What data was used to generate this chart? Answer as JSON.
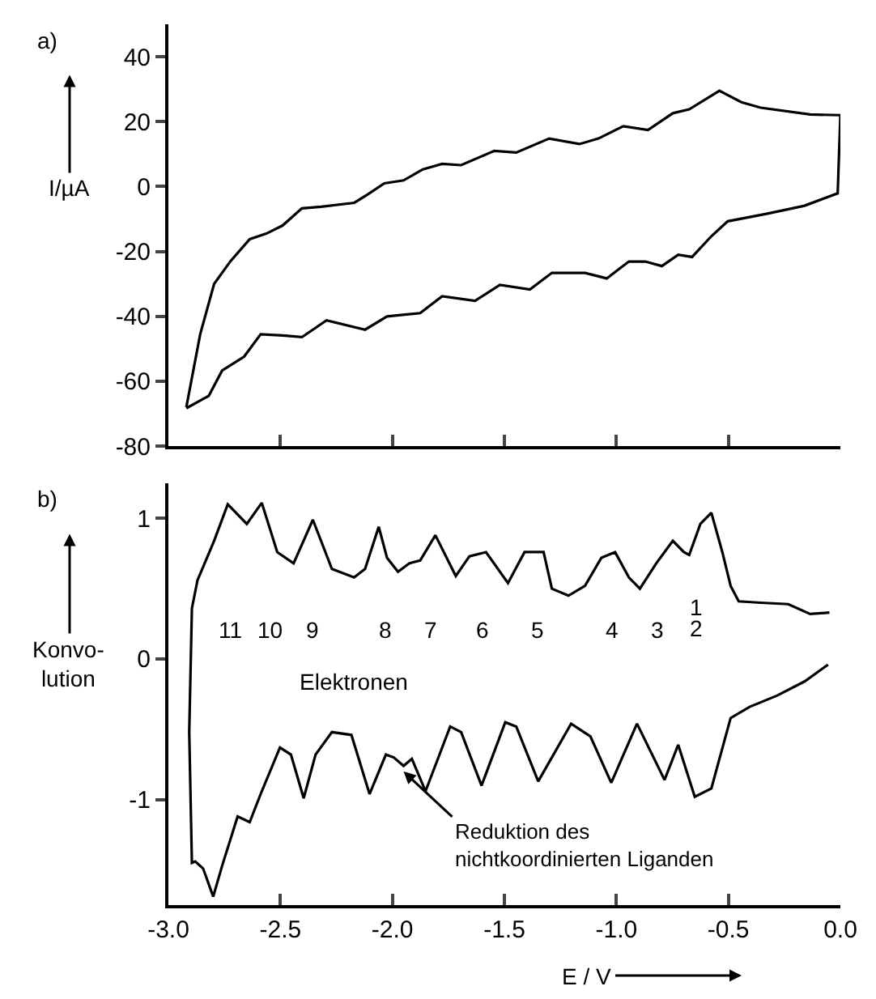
{
  "chart_data": [
    {
      "type": "line",
      "ylabel": "I/µA",
      "xlim": [
        -3,
        0
      ],
      "ylim": [
        -80,
        50
      ],
      "xticks": [
        -3,
        -2.5,
        -2,
        -1.5,
        -1,
        -0.5,
        0
      ],
      "yticks": [
        -80,
        -60,
        -40,
        -20,
        0,
        20,
        40
      ],
      "tick_labels": "y",
      "marker": "none",
      "line_style": "solid",
      "annotations": [
        "a)"
      ],
      "series": [
        {
          "color": "#000000",
          "x": [
            -2.92,
            -2.858,
            -2.796,
            -2.723,
            -2.637,
            -2.563,
            -2.49,
            -2.404,
            -2.318,
            -2.17,
            -2.11,
            -2.036,
            -1.95,
            -1.864,
            -1.778,
            -1.693,
            -1.545,
            -1.447,
            -1.3,
            -1.165,
            -1.08,
            -0.969,
            -0.859,
            -0.748,
            -0.675,
            -0.54,
            -0.442,
            -0.356,
            -0.135,
            0.0,
            -0.012,
            -0.16,
            -0.33,
            -0.503,
            -0.576,
            -0.662,
            -0.724,
            -0.797,
            -0.871,
            -0.944,
            -1.043,
            -1.14,
            -1.288,
            -1.386,
            -1.52,
            -1.631,
            -1.778,
            -1.876,
            -2.024,
            -2.122,
            -2.294,
            -2.404,
            -2.49,
            -2.588,
            -2.662,
            -2.76,
            -2.82,
            -2.92
          ],
          "values": [
            -68,
            -45.5,
            -30,
            -23,
            -16.2,
            -14.5,
            -12,
            -6.7,
            -6.2,
            -5,
            -2.4,
            1,
            1.9,
            5.3,
            7,
            6.6,
            11,
            10.5,
            14.8,
            13.1,
            14.8,
            18.6,
            17.4,
            22.6,
            23.8,
            29.5,
            26,
            24.3,
            22.2,
            22,
            -2.1,
            -5.9,
            -8.4,
            -10.7,
            -15.3,
            -21.7,
            -21,
            -24.5,
            -23.1,
            -23.1,
            -28.3,
            -26.6,
            -26.6,
            -31.7,
            -30.3,
            -35.2,
            -33.8,
            -39,
            -40,
            -44.1,
            -41.2,
            -46.4,
            -45.9,
            -45.5,
            -52.4,
            -56.7,
            -64.5,
            -68.3
          ]
        }
      ]
    },
    {
      "type": "line",
      "xlabel": "E / V",
      "ylabel": "Konvo-\nlution",
      "xlim": [
        -3,
        0
      ],
      "ylim": [
        -1.75,
        1.25
      ],
      "xticks": [
        {
          "value": -3,
          "label": "-3.0"
        },
        {
          "value": -2.5,
          "label": "-2.5"
        },
        {
          "value": -2,
          "label": "-2.0"
        },
        {
          "value": -1.5,
          "label": "-1.5"
        },
        {
          "value": -1,
          "label": "-1.0"
        },
        {
          "value": -0.5,
          "label": "-0.5"
        },
        {
          "value": 0,
          "label": "0.0"
        }
      ],
      "yticks": [
        -1,
        0,
        1
      ],
      "marker": "none",
      "line_style": "solid",
      "annotations": [
        "b)",
        "11",
        "10",
        "9",
        "8",
        "7",
        "6",
        "5",
        "4",
        "3",
        "1",
        "2",
        "Elektronen",
        {
          "text": "Reduktion des\nnichtkoordinierten Liganden",
          "x": -1.95,
          "y": -0.8
        }
      ],
      "series": [
        {
          "color": "#000000",
          "x": [
            -0.049,
            -0.135,
            -0.233,
            -0.356,
            -0.454,
            -0.49,
            -0.527,
            -0.576,
            -0.625,
            -0.675,
            -0.699,
            -0.748,
            -0.822,
            -0.895,
            -0.944,
            -1.006,
            -1.067,
            -1.14,
            -1.214,
            -1.288,
            -1.325,
            -1.41,
            -1.484,
            -1.582,
            -1.656,
            -1.717,
            -1.808,
            -1.876,
            -1.925,
            -1.975,
            -2.024,
            -2.061,
            -2.122,
            -2.171,
            -2.27,
            -2.355,
            -2.441,
            -2.514,
            -2.583,
            -2.65,
            -2.735,
            -2.796,
            -2.87,
            -2.895,
            -2.907,
            -2.895,
            -2.88,
            -2.845,
            -2.8,
            -2.76,
            -2.691,
            -2.637,
            -2.588,
            -2.502,
            -2.453,
            -2.396,
            -2.343,
            -2.27,
            -2.183,
            -2.102,
            -2.029,
            -1.994,
            -1.95,
            -1.913,
            -1.852,
            -1.742,
            -1.693,
            -1.602,
            -1.496,
            -1.447,
            -1.349,
            -1.202,
            -1.116,
            -1.023,
            -0.908,
            -0.785,
            -0.724,
            -0.65,
            -0.576,
            -0.49,
            -0.405,
            -0.282,
            -0.16,
            -0.055
          ],
          "values": [
            0.33,
            0.32,
            0.39,
            0.4,
            0.41,
            0.52,
            0.76,
            1.04,
            0.96,
            0.74,
            0.76,
            0.84,
            0.68,
            0.5,
            0.58,
            0.76,
            0.72,
            0.52,
            0.45,
            0.5,
            0.76,
            0.76,
            0.54,
            0.76,
            0.73,
            0.59,
            0.88,
            0.7,
            0.68,
            0.62,
            0.72,
            0.94,
            0.64,
            0.58,
            0.64,
            0.99,
            0.68,
            0.76,
            1.11,
            0.96,
            1.1,
            0.84,
            0.56,
            0.36,
            -0.52,
            -1.45,
            -1.44,
            -1.49,
            -1.69,
            -1.47,
            -1.12,
            -1.16,
            -0.96,
            -0.63,
            -0.68,
            -0.99,
            -0.68,
            -0.52,
            -0.54,
            -0.96,
            -0.68,
            -0.7,
            -0.76,
            -0.71,
            -0.94,
            -0.48,
            -0.52,
            -0.9,
            -0.45,
            -0.48,
            -0.87,
            -0.46,
            -0.55,
            -0.88,
            -0.46,
            -0.86,
            -0.61,
            -0.98,
            -0.92,
            -0.42,
            -0.34,
            -0.26,
            -0.16,
            -0.04
          ]
        }
      ]
    }
  ]
}
